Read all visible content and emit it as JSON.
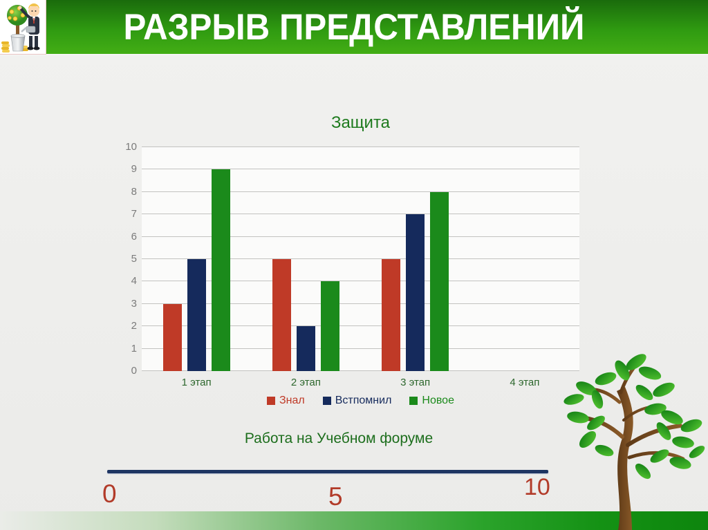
{
  "header": {
    "title": "РАЗРЫВ ПРЕДСТАВЛЕНИЙ"
  },
  "chart_data": {
    "type": "bar",
    "title": "Защита",
    "categories": [
      "1 этап",
      "2 этап",
      "3 этап",
      "4 этап"
    ],
    "series": [
      {
        "name": "Знал",
        "color": "#bf3a27",
        "values": [
          3,
          5,
          5,
          0
        ]
      },
      {
        "name": "Встпомнил",
        "color": "#152a5c",
        "values": [
          5,
          2,
          7,
          0
        ]
      },
      {
        "name": "Новое",
        "color": "#1b8a1b",
        "values": [
          9,
          4,
          8,
          0
        ]
      }
    ],
    "ylim": [
      0,
      10
    ],
    "yticks": [
      0,
      1,
      2,
      3,
      4,
      5,
      6,
      7,
      8,
      9,
      10
    ],
    "grid": true,
    "legend_position": "bottom",
    "title_color": "#1d7a1d",
    "ytick_color": "#7a7a7a",
    "category_label_color": "#2d672d"
  },
  "caption": {
    "text": "Работа на Учебном форуме"
  },
  "scale": {
    "labels": [
      "0",
      "5",
      "10"
    ],
    "line_color": "#1e3562",
    "label_color": "#b23b29"
  },
  "icons": {
    "header_image": "boy-watering-money-tree",
    "footer_image": "green-tree"
  }
}
